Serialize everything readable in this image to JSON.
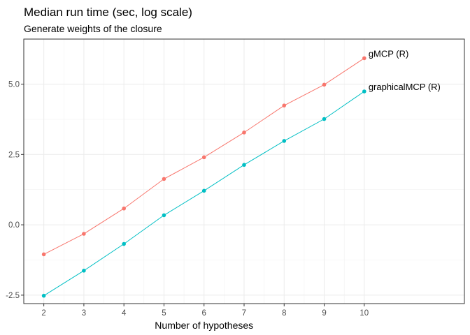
{
  "chart_data": {
    "type": "line",
    "title": "Median run time (sec, log scale)",
    "subtitle": "Generate weights of the closure",
    "xlabel": "Number of hypotheses",
    "ylabel": "",
    "x": [
      2,
      3,
      4,
      5,
      6,
      7,
      8,
      9,
      10
    ],
    "xlim": [
      1.5,
      12.5
    ],
    "ylim": [
      -2.8,
      6.6
    ],
    "x_ticks": [
      2,
      3,
      4,
      5,
      6,
      7,
      8,
      9,
      10
    ],
    "y_ticks": [
      -2.5,
      0.0,
      2.5,
      5.0
    ],
    "y_tick_labels": [
      "-2.5",
      "0.0",
      "2.5",
      "5.0"
    ],
    "grid": true,
    "legend": "labels at line ends",
    "series": [
      {
        "name": "gMCP (R)",
        "color": "#F8766D",
        "values": [
          -1.05,
          -0.32,
          0.58,
          1.63,
          2.4,
          3.28,
          4.24,
          4.98,
          5.92
        ]
      },
      {
        "name": "graphicalMCP (R)",
        "color": "#00BFC4",
        "values": [
          -2.52,
          -1.63,
          -0.68,
          0.34,
          1.21,
          2.13,
          2.98,
          3.76,
          4.74
        ]
      }
    ]
  }
}
